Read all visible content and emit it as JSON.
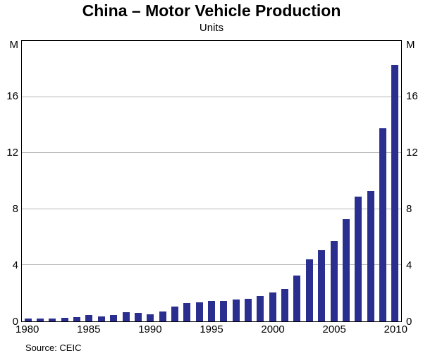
{
  "title": "China – Motor Vehicle Production",
  "subtitle": "Units",
  "axis_unit_left": "M",
  "axis_unit_right": "M",
  "source": "Source: CEIC",
  "chart_data": {
    "type": "bar",
    "title": "China – Motor Vehicle Production",
    "subtitle": "Units",
    "xlabel": "",
    "ylabel": "M",
    "ylim": [
      0,
      20
    ],
    "yticks": [
      0,
      4,
      8,
      12,
      16
    ],
    "xticks": [
      1980,
      1985,
      1990,
      1995,
      2000,
      2005,
      2010
    ],
    "grid": true,
    "legend": "none",
    "bar_color": "#2a2f8f",
    "grid_color": "#b8b8b8",
    "categories": [
      1980,
      1981,
      1982,
      1983,
      1984,
      1985,
      1986,
      1987,
      1988,
      1989,
      1990,
      1991,
      1992,
      1993,
      1994,
      1995,
      1996,
      1997,
      1998,
      1999,
      2000,
      2001,
      2002,
      2003,
      2004,
      2005,
      2006,
      2007,
      2008,
      2009,
      2010
    ],
    "values": [
      0.22,
      0.18,
      0.2,
      0.24,
      0.32,
      0.44,
      0.37,
      0.47,
      0.65,
      0.58,
      0.51,
      0.71,
      1.06,
      1.3,
      1.35,
      1.45,
      1.47,
      1.58,
      1.63,
      1.83,
      2.07,
      2.33,
      3.25,
      4.44,
      5.07,
      5.71,
      7.28,
      8.88,
      9.3,
      13.79,
      18.3
    ]
  }
}
